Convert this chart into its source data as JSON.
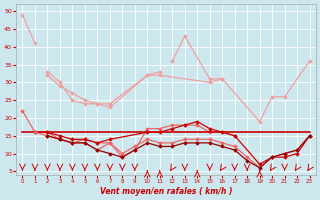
{
  "x": [
    0,
    1,
    2,
    3,
    4,
    5,
    6,
    7,
    8,
    9,
    10,
    11,
    12,
    13,
    14,
    15,
    16,
    17,
    18,
    19,
    20,
    21,
    22,
    23
  ],
  "line_top": [
    49,
    41,
    null,
    null,
    null,
    null,
    null,
    null,
    null,
    null,
    null,
    null,
    null,
    null,
    null,
    null,
    null,
    null,
    null,
    null,
    null,
    null,
    null,
    null
  ],
  "line_upper1": [
    null,
    null,
    null,
    null,
    null,
    null,
    null,
    null,
    null,
    null,
    null,
    null,
    36,
    43,
    null,
    31,
    31,
    null,
    null,
    null,
    null,
    null,
    null,
    null
  ],
  "line_upper2": [
    null,
    null,
    33,
    30,
    25,
    24,
    24,
    24,
    null,
    null,
    32,
    32,
    null,
    null,
    null,
    30,
    31,
    null,
    null,
    19,
    26,
    26,
    null,
    36
  ],
  "line_upper3": [
    null,
    null,
    32,
    29,
    27,
    25,
    24,
    23,
    null,
    null,
    32,
    33,
    null,
    null,
    null,
    null,
    null,
    null,
    null,
    null,
    null,
    null,
    null,
    null
  ],
  "line_mid1": [
    22,
    16,
    16,
    14,
    13,
    14,
    13,
    13,
    9,
    11,
    17,
    17,
    18,
    18,
    18,
    16,
    16,
    15,
    null,
    null,
    null,
    null,
    null,
    null
  ],
  "line_mid2": [
    null,
    16,
    16,
    15,
    14,
    14,
    13,
    14,
    null,
    null,
    16,
    16,
    17,
    18,
    19,
    17,
    16,
    15,
    null,
    7,
    9,
    9,
    10,
    15
  ],
  "line_flat": [
    16,
    16,
    16,
    16,
    16,
    16,
    16,
    16,
    16,
    16,
    16,
    16,
    16,
    16,
    16,
    16,
    16,
    16,
    16,
    16,
    16,
    16,
    16,
    16
  ],
  "line_bot1": [
    null,
    16,
    15,
    14,
    13,
    13,
    11,
    13,
    10,
    12,
    14,
    13,
    13,
    14,
    14,
    14,
    13,
    12,
    9,
    6,
    9,
    10,
    11,
    15
  ],
  "line_bot2": [
    null,
    null,
    15,
    14,
    13,
    13,
    11,
    10,
    9,
    11,
    13,
    12,
    12,
    13,
    13,
    13,
    12,
    11,
    8,
    6,
    9,
    10,
    11,
    15
  ],
  "xlim": [
    -0.5,
    23.5
  ],
  "ylim": [
    4,
    52
  ],
  "yticks": [
    5,
    10,
    15,
    20,
    25,
    30,
    35,
    40,
    45,
    50
  ],
  "xticks": [
    0,
    1,
    2,
    3,
    4,
    5,
    6,
    7,
    8,
    9,
    10,
    11,
    12,
    13,
    14,
    15,
    16,
    17,
    18,
    19,
    20,
    21,
    22,
    23
  ],
  "xlabel": "Vent moyen/en rafales ( km/h )",
  "bg_color": "#cce8ee",
  "grid_color": "#ffffff",
  "color_light": "#f0a0a0",
  "color_mid": "#ee6666",
  "color_dark": "#cc0000",
  "color_darkest": "#990000"
}
